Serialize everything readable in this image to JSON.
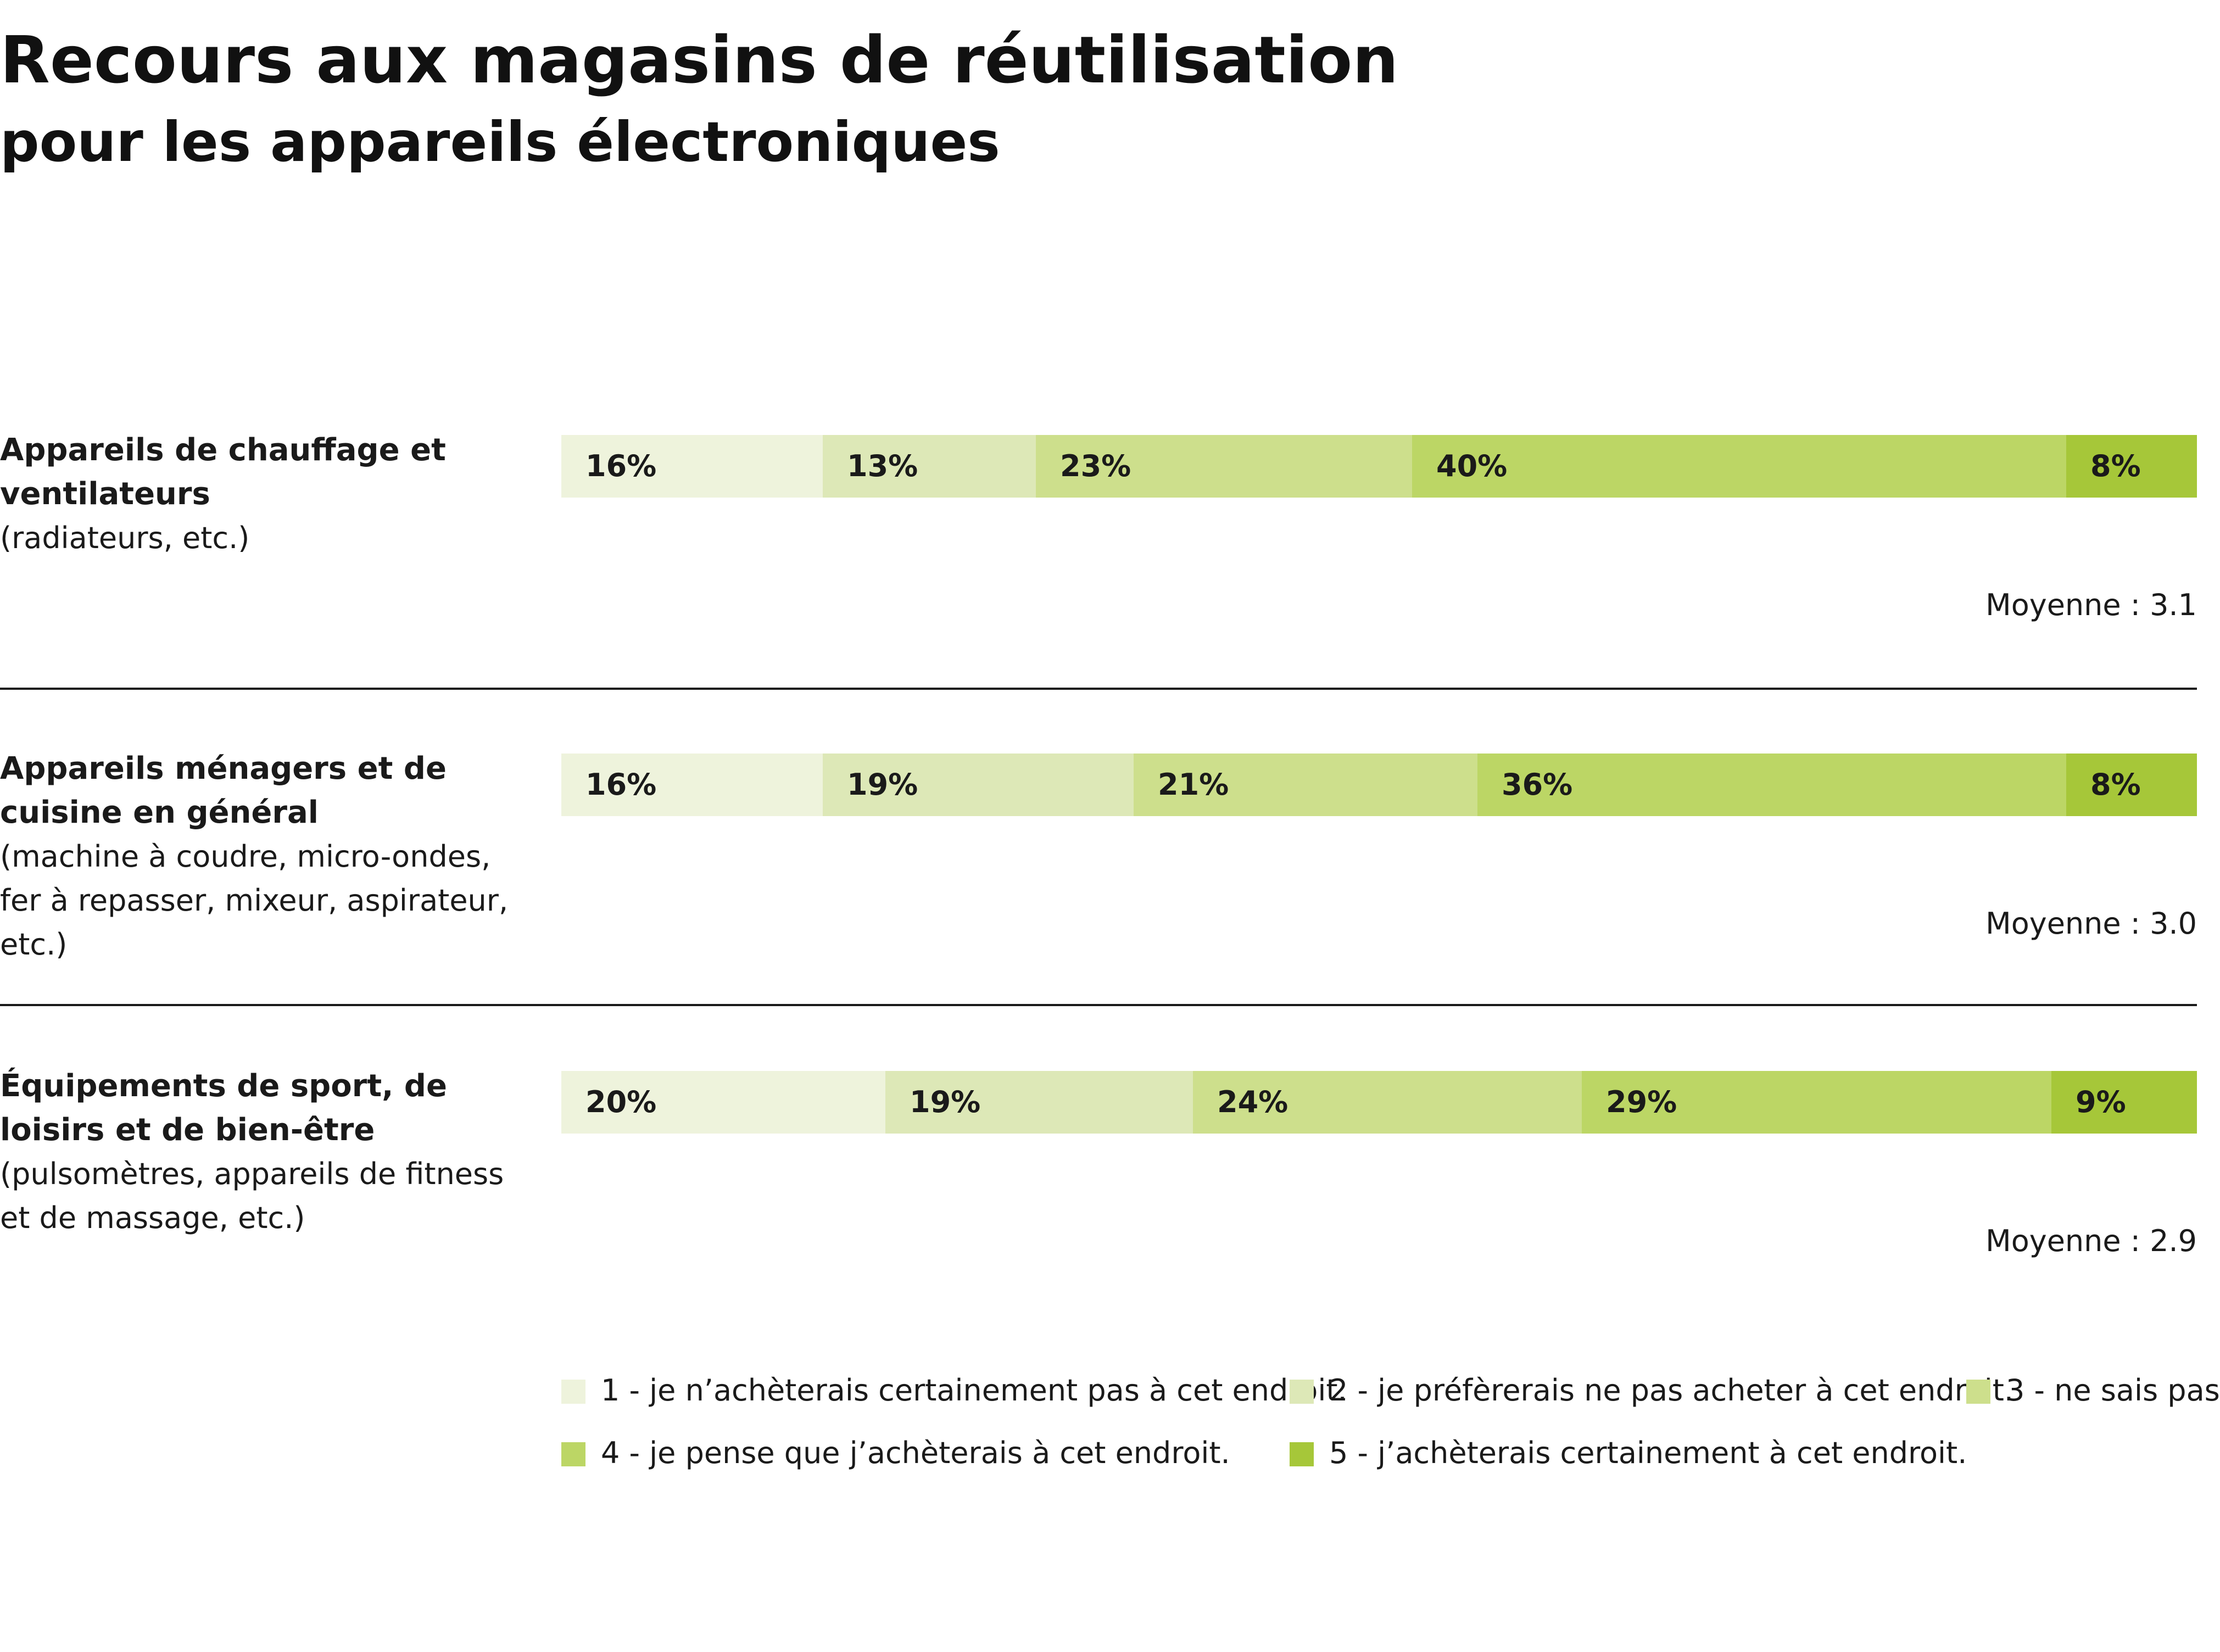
{
  "chart_data": {
    "type": "bar",
    "orientation": "horizontal",
    "stacked": true,
    "title": "Recours aux magasins de réutilisation",
    "subtitle": "pour les appareils électroniques",
    "xlim": [
      0,
      100
    ],
    "grid": false,
    "legend_position": "bottom",
    "colors": [
      "#eef3dc",
      "#dde8b7",
      "#cddf8c",
      "#bcd665",
      "#a6c739"
    ],
    "legend": [
      "1 - je n’achèterais certainement pas à cet endroit.",
      "2 - je préfèrerais ne pas acheter à cet endroit.",
      "3 - ne sais pas",
      "4 - je pense que j’achèterais à cet endroit.",
      "5 - j’achèterais certainement à cet endroit."
    ],
    "rows": [
      {
        "category": "Appareils de chauffage et ventilateurs",
        "description": "(radiateurs, etc.)",
        "values": [
          16,
          13,
          23,
          40,
          8
        ],
        "labels": [
          "16%",
          "13%",
          "23%",
          "40%",
          "8%"
        ],
        "mean_label": "Moyenne : 3.1"
      },
      {
        "category": "Appareils ménagers et de cuisine en général",
        "description": "(machine à coudre, micro-ondes, fer à repasser, mixeur, aspirateur, etc.)",
        "values": [
          16,
          19,
          21,
          36,
          8
        ],
        "labels": [
          "16%",
          "19%",
          "21%",
          "36%",
          "8%"
        ],
        "mean_label": "Moyenne : 3.0"
      },
      {
        "category": "Équipements de sport, de loisirs et de bien-être",
        "description": "(pulsomètres, appareils de fitness et de massage, etc.)",
        "values": [
          20,
          19,
          24,
          29,
          9
        ],
        "labels": [
          "20%",
          "19%",
          "24%",
          "29%",
          "9%"
        ],
        "mean_label": "Moyenne : 2.9"
      }
    ]
  }
}
